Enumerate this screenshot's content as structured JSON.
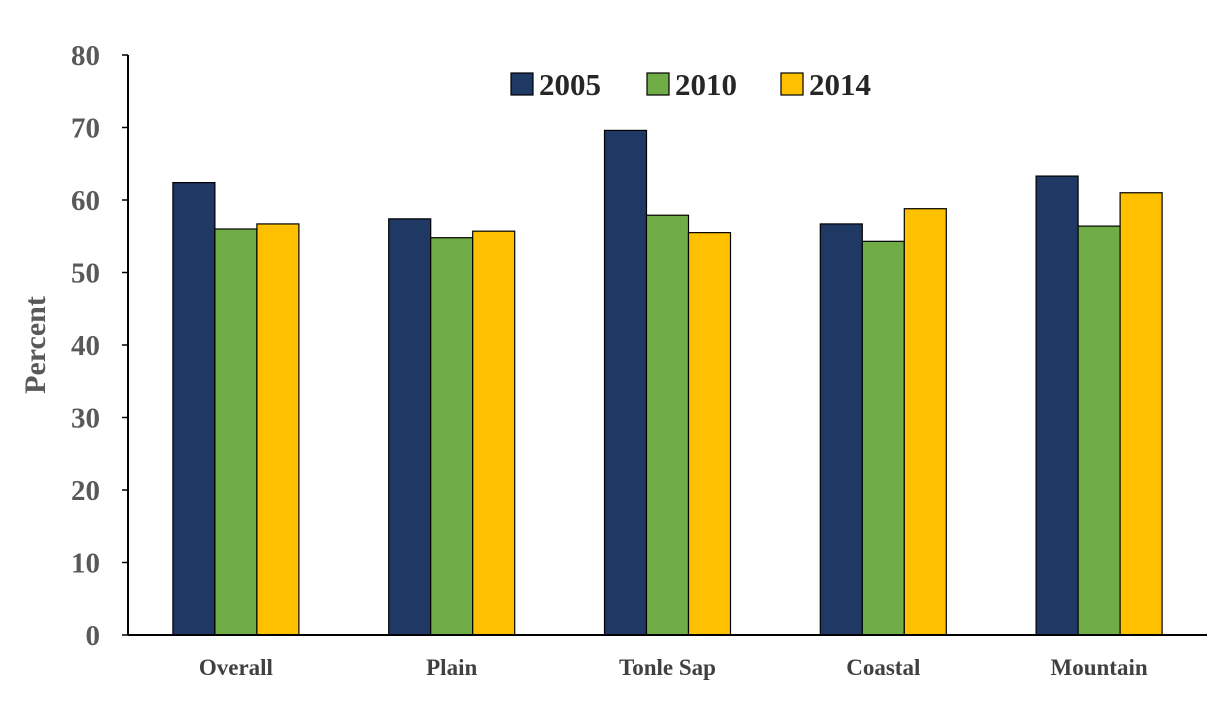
{
  "chart_data": {
    "type": "bar",
    "ylabel": "Percent",
    "ylim": [
      0,
      80
    ],
    "yticks": [
      0,
      10,
      20,
      30,
      40,
      50,
      60,
      70,
      80
    ],
    "categories": [
      "Overall",
      "Plain",
      "Tonle Sap",
      "Coastal",
      "Mountain"
    ],
    "series": [
      {
        "name": "2005",
        "color": "#1f3864",
        "values": [
          62.4,
          57.4,
          69.6,
          56.7,
          63.3
        ]
      },
      {
        "name": "2010",
        "color": "#70ad47",
        "values": [
          56.0,
          54.8,
          57.9,
          54.3,
          56.4
        ]
      },
      {
        "name": "2014",
        "color": "#ffc000",
        "values": [
          56.7,
          55.7,
          55.5,
          58.8,
          61.0
        ]
      }
    ],
    "legend_position": "top-center",
    "grid": false
  }
}
